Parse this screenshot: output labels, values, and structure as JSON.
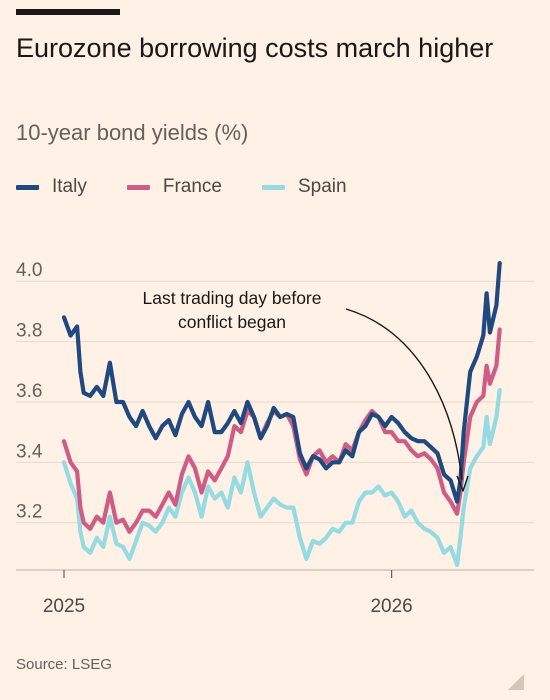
{
  "title": "Eurozone borrowing costs march higher",
  "subtitle": "10-year bond yields (%)",
  "source": "Source: LSEG",
  "annotation": [
    "Last trading day before",
    "conflict began"
  ],
  "chart_data": {
    "type": "line",
    "title": "Eurozone borrowing costs march higher",
    "subtitle": "10-year bond yields (%)",
    "x_ticks": [
      "2025",
      "2026"
    ],
    "y_ticks": [
      "4.0",
      "3.8",
      "3.6",
      "3.4",
      "3.2"
    ],
    "ylim": [
      3.05,
      4.1
    ],
    "xlim": [
      2025.0,
      2026.34
    ],
    "grid": true,
    "legend_position": "top",
    "series": [
      {
        "name": "Italy",
        "color": "#20497F",
        "points": [
          [
            2025.0,
            3.88
          ],
          [
            2025.02,
            3.82
          ],
          [
            2025.04,
            3.85
          ],
          [
            2025.05,
            3.7
          ],
          [
            2025.06,
            3.63
          ],
          [
            2025.08,
            3.62
          ],
          [
            2025.1,
            3.65
          ],
          [
            2025.12,
            3.62
          ],
          [
            2025.14,
            3.73
          ],
          [
            2025.16,
            3.6
          ],
          [
            2025.18,
            3.6
          ],
          [
            2025.2,
            3.55
          ],
          [
            2025.22,
            3.52
          ],
          [
            2025.24,
            3.57
          ],
          [
            2025.26,
            3.52
          ],
          [
            2025.28,
            3.48
          ],
          [
            2025.3,
            3.52
          ],
          [
            2025.32,
            3.54
          ],
          [
            2025.34,
            3.49
          ],
          [
            2025.36,
            3.56
          ],
          [
            2025.38,
            3.6
          ],
          [
            2025.4,
            3.55
          ],
          [
            2025.42,
            3.52
          ],
          [
            2025.44,
            3.6
          ],
          [
            2025.46,
            3.5
          ],
          [
            2025.48,
            3.5
          ],
          [
            2025.5,
            3.53
          ],
          [
            2025.52,
            3.57
          ],
          [
            2025.54,
            3.53
          ],
          [
            2025.56,
            3.6
          ],
          [
            2025.58,
            3.55
          ],
          [
            2025.6,
            3.48
          ],
          [
            2025.62,
            3.52
          ],
          [
            2025.64,
            3.58
          ],
          [
            2025.66,
            3.55
          ],
          [
            2025.68,
            3.56
          ],
          [
            2025.7,
            3.55
          ],
          [
            2025.72,
            3.43
          ],
          [
            2025.74,
            3.38
          ],
          [
            2025.76,
            3.42
          ],
          [
            2025.78,
            3.41
          ],
          [
            2025.8,
            3.38
          ],
          [
            2025.82,
            3.4
          ],
          [
            2025.84,
            3.4
          ],
          [
            2025.86,
            3.44
          ],
          [
            2025.88,
            3.42
          ],
          [
            2025.9,
            3.5
          ],
          [
            2025.92,
            3.52
          ],
          [
            2025.94,
            3.56
          ],
          [
            2025.96,
            3.55
          ],
          [
            2025.98,
            3.52
          ],
          [
            2026.0,
            3.55
          ],
          [
            2026.02,
            3.53
          ],
          [
            2026.04,
            3.5
          ],
          [
            2026.06,
            3.48
          ],
          [
            2026.08,
            3.47
          ],
          [
            2026.1,
            3.47
          ],
          [
            2026.12,
            3.45
          ],
          [
            2026.14,
            3.43
          ],
          [
            2026.16,
            3.36
          ],
          [
            2026.18,
            3.34
          ],
          [
            2026.2,
            3.27
          ],
          [
            2026.21,
            3.34
          ],
          [
            2026.22,
            3.5
          ],
          [
            2026.24,
            3.7
          ],
          [
            2026.26,
            3.75
          ],
          [
            2026.28,
            3.82
          ],
          [
            2026.29,
            3.96
          ],
          [
            2026.3,
            3.83
          ],
          [
            2026.32,
            3.92
          ],
          [
            2026.33,
            4.06
          ]
        ]
      },
      {
        "name": "France",
        "color": "#CE5C85",
        "points": [
          [
            2025.0,
            3.47
          ],
          [
            2025.02,
            3.4
          ],
          [
            2025.04,
            3.37
          ],
          [
            2025.05,
            3.25
          ],
          [
            2025.06,
            3.2
          ],
          [
            2025.08,
            3.18
          ],
          [
            2025.1,
            3.22
          ],
          [
            2025.12,
            3.2
          ],
          [
            2025.14,
            3.3
          ],
          [
            2025.16,
            3.2
          ],
          [
            2025.18,
            3.21
          ],
          [
            2025.2,
            3.17
          ],
          [
            2025.22,
            3.2
          ],
          [
            2025.24,
            3.24
          ],
          [
            2025.26,
            3.24
          ],
          [
            2025.28,
            3.22
          ],
          [
            2025.3,
            3.26
          ],
          [
            2025.32,
            3.3
          ],
          [
            2025.34,
            3.26
          ],
          [
            2025.36,
            3.36
          ],
          [
            2025.38,
            3.42
          ],
          [
            2025.4,
            3.38
          ],
          [
            2025.42,
            3.3
          ],
          [
            2025.44,
            3.37
          ],
          [
            2025.46,
            3.34
          ],
          [
            2025.48,
            3.38
          ],
          [
            2025.5,
            3.42
          ],
          [
            2025.52,
            3.52
          ],
          [
            2025.54,
            3.5
          ],
          [
            2025.56,
            3.57
          ],
          [
            2025.58,
            3.55
          ],
          [
            2025.6,
            3.48
          ],
          [
            2025.62,
            3.53
          ],
          [
            2025.64,
            3.57
          ],
          [
            2025.66,
            3.55
          ],
          [
            2025.68,
            3.56
          ],
          [
            2025.7,
            3.52
          ],
          [
            2025.72,
            3.41
          ],
          [
            2025.74,
            3.36
          ],
          [
            2025.76,
            3.42
          ],
          [
            2025.78,
            3.44
          ],
          [
            2025.8,
            3.4
          ],
          [
            2025.82,
            3.42
          ],
          [
            2025.84,
            3.4
          ],
          [
            2025.86,
            3.46
          ],
          [
            2025.88,
            3.44
          ],
          [
            2025.9,
            3.5
          ],
          [
            2025.92,
            3.54
          ],
          [
            2025.94,
            3.57
          ],
          [
            2025.96,
            3.55
          ],
          [
            2025.98,
            3.5
          ],
          [
            2026.0,
            3.5
          ],
          [
            2026.02,
            3.47
          ],
          [
            2026.04,
            3.47
          ],
          [
            2026.06,
            3.44
          ],
          [
            2026.08,
            3.42
          ],
          [
            2026.1,
            3.43
          ],
          [
            2026.12,
            3.41
          ],
          [
            2026.14,
            3.38
          ],
          [
            2026.16,
            3.3
          ],
          [
            2026.18,
            3.27
          ],
          [
            2026.2,
            3.23
          ],
          [
            2026.21,
            3.3
          ],
          [
            2026.22,
            3.4
          ],
          [
            2026.24,
            3.55
          ],
          [
            2026.26,
            3.6
          ],
          [
            2026.28,
            3.62
          ],
          [
            2026.29,
            3.72
          ],
          [
            2026.3,
            3.66
          ],
          [
            2026.32,
            3.72
          ],
          [
            2026.33,
            3.84
          ]
        ]
      },
      {
        "name": "Spain",
        "color": "#96DAE2",
        "points": [
          [
            2025.0,
            3.4
          ],
          [
            2025.02,
            3.33
          ],
          [
            2025.04,
            3.28
          ],
          [
            2025.05,
            3.17
          ],
          [
            2025.06,
            3.12
          ],
          [
            2025.08,
            3.1
          ],
          [
            2025.1,
            3.15
          ],
          [
            2025.12,
            3.12
          ],
          [
            2025.14,
            3.22
          ],
          [
            2025.16,
            3.13
          ],
          [
            2025.18,
            3.12
          ],
          [
            2025.2,
            3.08
          ],
          [
            2025.22,
            3.14
          ],
          [
            2025.24,
            3.2
          ],
          [
            2025.26,
            3.19
          ],
          [
            2025.28,
            3.17
          ],
          [
            2025.3,
            3.2
          ],
          [
            2025.32,
            3.25
          ],
          [
            2025.34,
            3.22
          ],
          [
            2025.36,
            3.3
          ],
          [
            2025.38,
            3.35
          ],
          [
            2025.4,
            3.3
          ],
          [
            2025.42,
            3.22
          ],
          [
            2025.44,
            3.32
          ],
          [
            2025.46,
            3.28
          ],
          [
            2025.48,
            3.3
          ],
          [
            2025.5,
            3.25
          ],
          [
            2025.52,
            3.35
          ],
          [
            2025.54,
            3.3
          ],
          [
            2025.56,
            3.4
          ],
          [
            2025.58,
            3.3
          ],
          [
            2025.6,
            3.22
          ],
          [
            2025.62,
            3.25
          ],
          [
            2025.64,
            3.28
          ],
          [
            2025.66,
            3.26
          ],
          [
            2025.68,
            3.25
          ],
          [
            2025.7,
            3.25
          ],
          [
            2025.72,
            3.15
          ],
          [
            2025.74,
            3.08
          ],
          [
            2025.76,
            3.14
          ],
          [
            2025.78,
            3.13
          ],
          [
            2025.8,
            3.15
          ],
          [
            2025.82,
            3.18
          ],
          [
            2025.84,
            3.17
          ],
          [
            2025.86,
            3.2
          ],
          [
            2025.88,
            3.2
          ],
          [
            2025.9,
            3.27
          ],
          [
            2025.92,
            3.3
          ],
          [
            2025.94,
            3.3
          ],
          [
            2025.96,
            3.32
          ],
          [
            2025.98,
            3.29
          ],
          [
            2026.0,
            3.3
          ],
          [
            2026.02,
            3.27
          ],
          [
            2026.04,
            3.22
          ],
          [
            2026.06,
            3.24
          ],
          [
            2026.08,
            3.2
          ],
          [
            2026.1,
            3.18
          ],
          [
            2026.12,
            3.17
          ],
          [
            2026.14,
            3.15
          ],
          [
            2026.16,
            3.1
          ],
          [
            2026.18,
            3.12
          ],
          [
            2026.2,
            3.06
          ],
          [
            2026.21,
            3.15
          ],
          [
            2026.22,
            3.25
          ],
          [
            2026.24,
            3.38
          ],
          [
            2026.26,
            3.42
          ],
          [
            2026.28,
            3.45
          ],
          [
            2026.29,
            3.55
          ],
          [
            2026.3,
            3.46
          ],
          [
            2026.32,
            3.55
          ],
          [
            2026.33,
            3.64
          ]
        ]
      }
    ]
  }
}
